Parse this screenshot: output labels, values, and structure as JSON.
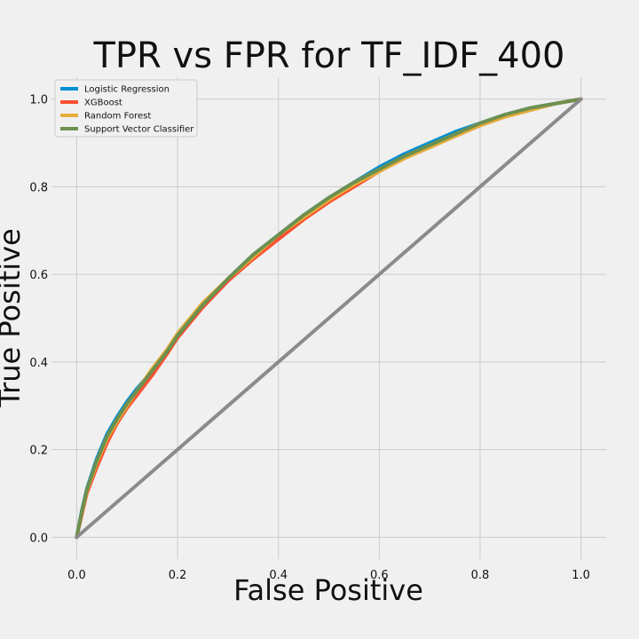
{
  "chart_data": {
    "type": "line",
    "title": "TPR vs FPR for TF_IDF_400",
    "xlabel": "False Positive",
    "ylabel": "True Positive",
    "xlim": [
      -0.05,
      1.05
    ],
    "ylim": [
      -0.05,
      1.05
    ],
    "grid": true,
    "legend_placement": "upper-left",
    "xticks": [
      0.0,
      0.2,
      0.4,
      0.6,
      0.8,
      1.0
    ],
    "xtick_labels": [
      "0.0",
      "0.2",
      "0.4",
      "0.6",
      "0.8",
      "1.0"
    ],
    "yticks": [
      0.0,
      0.2,
      0.4,
      0.6,
      0.8,
      1.0
    ],
    "ytick_labels": [
      "0.0",
      "0.2",
      "0.4",
      "0.6",
      "0.8",
      "1.0"
    ],
    "series": [
      {
        "name": "Logistic Regression",
        "color": "#008fd5",
        "x": [
          0.0,
          0.01,
          0.02,
          0.04,
          0.06,
          0.08,
          0.1,
          0.12,
          0.15,
          0.18,
          0.2,
          0.25,
          0.3,
          0.35,
          0.4,
          0.45,
          0.5,
          0.55,
          0.6,
          0.65,
          0.7,
          0.75,
          0.8,
          0.85,
          0.9,
          0.95,
          1.0
        ],
        "y": [
          0.0,
          0.06,
          0.11,
          0.18,
          0.235,
          0.275,
          0.31,
          0.34,
          0.38,
          0.425,
          0.46,
          0.53,
          0.59,
          0.645,
          0.69,
          0.735,
          0.775,
          0.81,
          0.845,
          0.875,
          0.9,
          0.925,
          0.945,
          0.965,
          0.98,
          0.99,
          1.0
        ]
      },
      {
        "name": "XGBoost",
        "color": "#fc4f30",
        "x": [
          0.0,
          0.01,
          0.02,
          0.04,
          0.06,
          0.08,
          0.1,
          0.12,
          0.15,
          0.18,
          0.2,
          0.25,
          0.3,
          0.35,
          0.4,
          0.45,
          0.5,
          0.55,
          0.6,
          0.65,
          0.7,
          0.75,
          0.8,
          0.85,
          0.9,
          0.95,
          1.0
        ],
        "y": [
          0.0,
          0.05,
          0.1,
          0.16,
          0.215,
          0.26,
          0.295,
          0.325,
          0.37,
          0.42,
          0.455,
          0.525,
          0.585,
          0.635,
          0.68,
          0.725,
          0.765,
          0.8,
          0.835,
          0.865,
          0.89,
          0.915,
          0.94,
          0.96,
          0.975,
          0.99,
          1.0
        ]
      },
      {
        "name": "Random Forest",
        "color": "#e5ae38",
        "x": [
          0.0,
          0.01,
          0.02,
          0.04,
          0.06,
          0.08,
          0.1,
          0.12,
          0.15,
          0.18,
          0.2,
          0.25,
          0.3,
          0.35,
          0.4,
          0.45,
          0.5,
          0.55,
          0.6,
          0.65,
          0.7,
          0.75,
          0.8,
          0.85,
          0.9,
          0.95,
          1.0
        ],
        "y": [
          0.0,
          0.055,
          0.105,
          0.17,
          0.225,
          0.265,
          0.3,
          0.335,
          0.385,
          0.43,
          0.465,
          0.535,
          0.59,
          0.64,
          0.69,
          0.73,
          0.77,
          0.805,
          0.835,
          0.865,
          0.89,
          0.915,
          0.94,
          0.96,
          0.975,
          0.99,
          1.0
        ]
      },
      {
        "name": "Support Vector Classifier",
        "color": "#6d904f",
        "x": [
          0.0,
          0.01,
          0.02,
          0.04,
          0.06,
          0.08,
          0.1,
          0.12,
          0.15,
          0.18,
          0.2,
          0.25,
          0.3,
          0.35,
          0.4,
          0.45,
          0.5,
          0.55,
          0.6,
          0.65,
          0.7,
          0.75,
          0.8,
          0.85,
          0.9,
          0.95,
          1.0
        ],
        "y": [
          0.0,
          0.058,
          0.108,
          0.175,
          0.23,
          0.27,
          0.305,
          0.335,
          0.38,
          0.425,
          0.46,
          0.53,
          0.59,
          0.645,
          0.69,
          0.735,
          0.775,
          0.81,
          0.84,
          0.87,
          0.895,
          0.92,
          0.945,
          0.965,
          0.98,
          0.99,
          1.0
        ]
      },
      {
        "name": "",
        "color": "#8b8b8b",
        "x": [
          0.0,
          1.0
        ],
        "y": [
          0.0,
          1.0
        ]
      }
    ]
  }
}
